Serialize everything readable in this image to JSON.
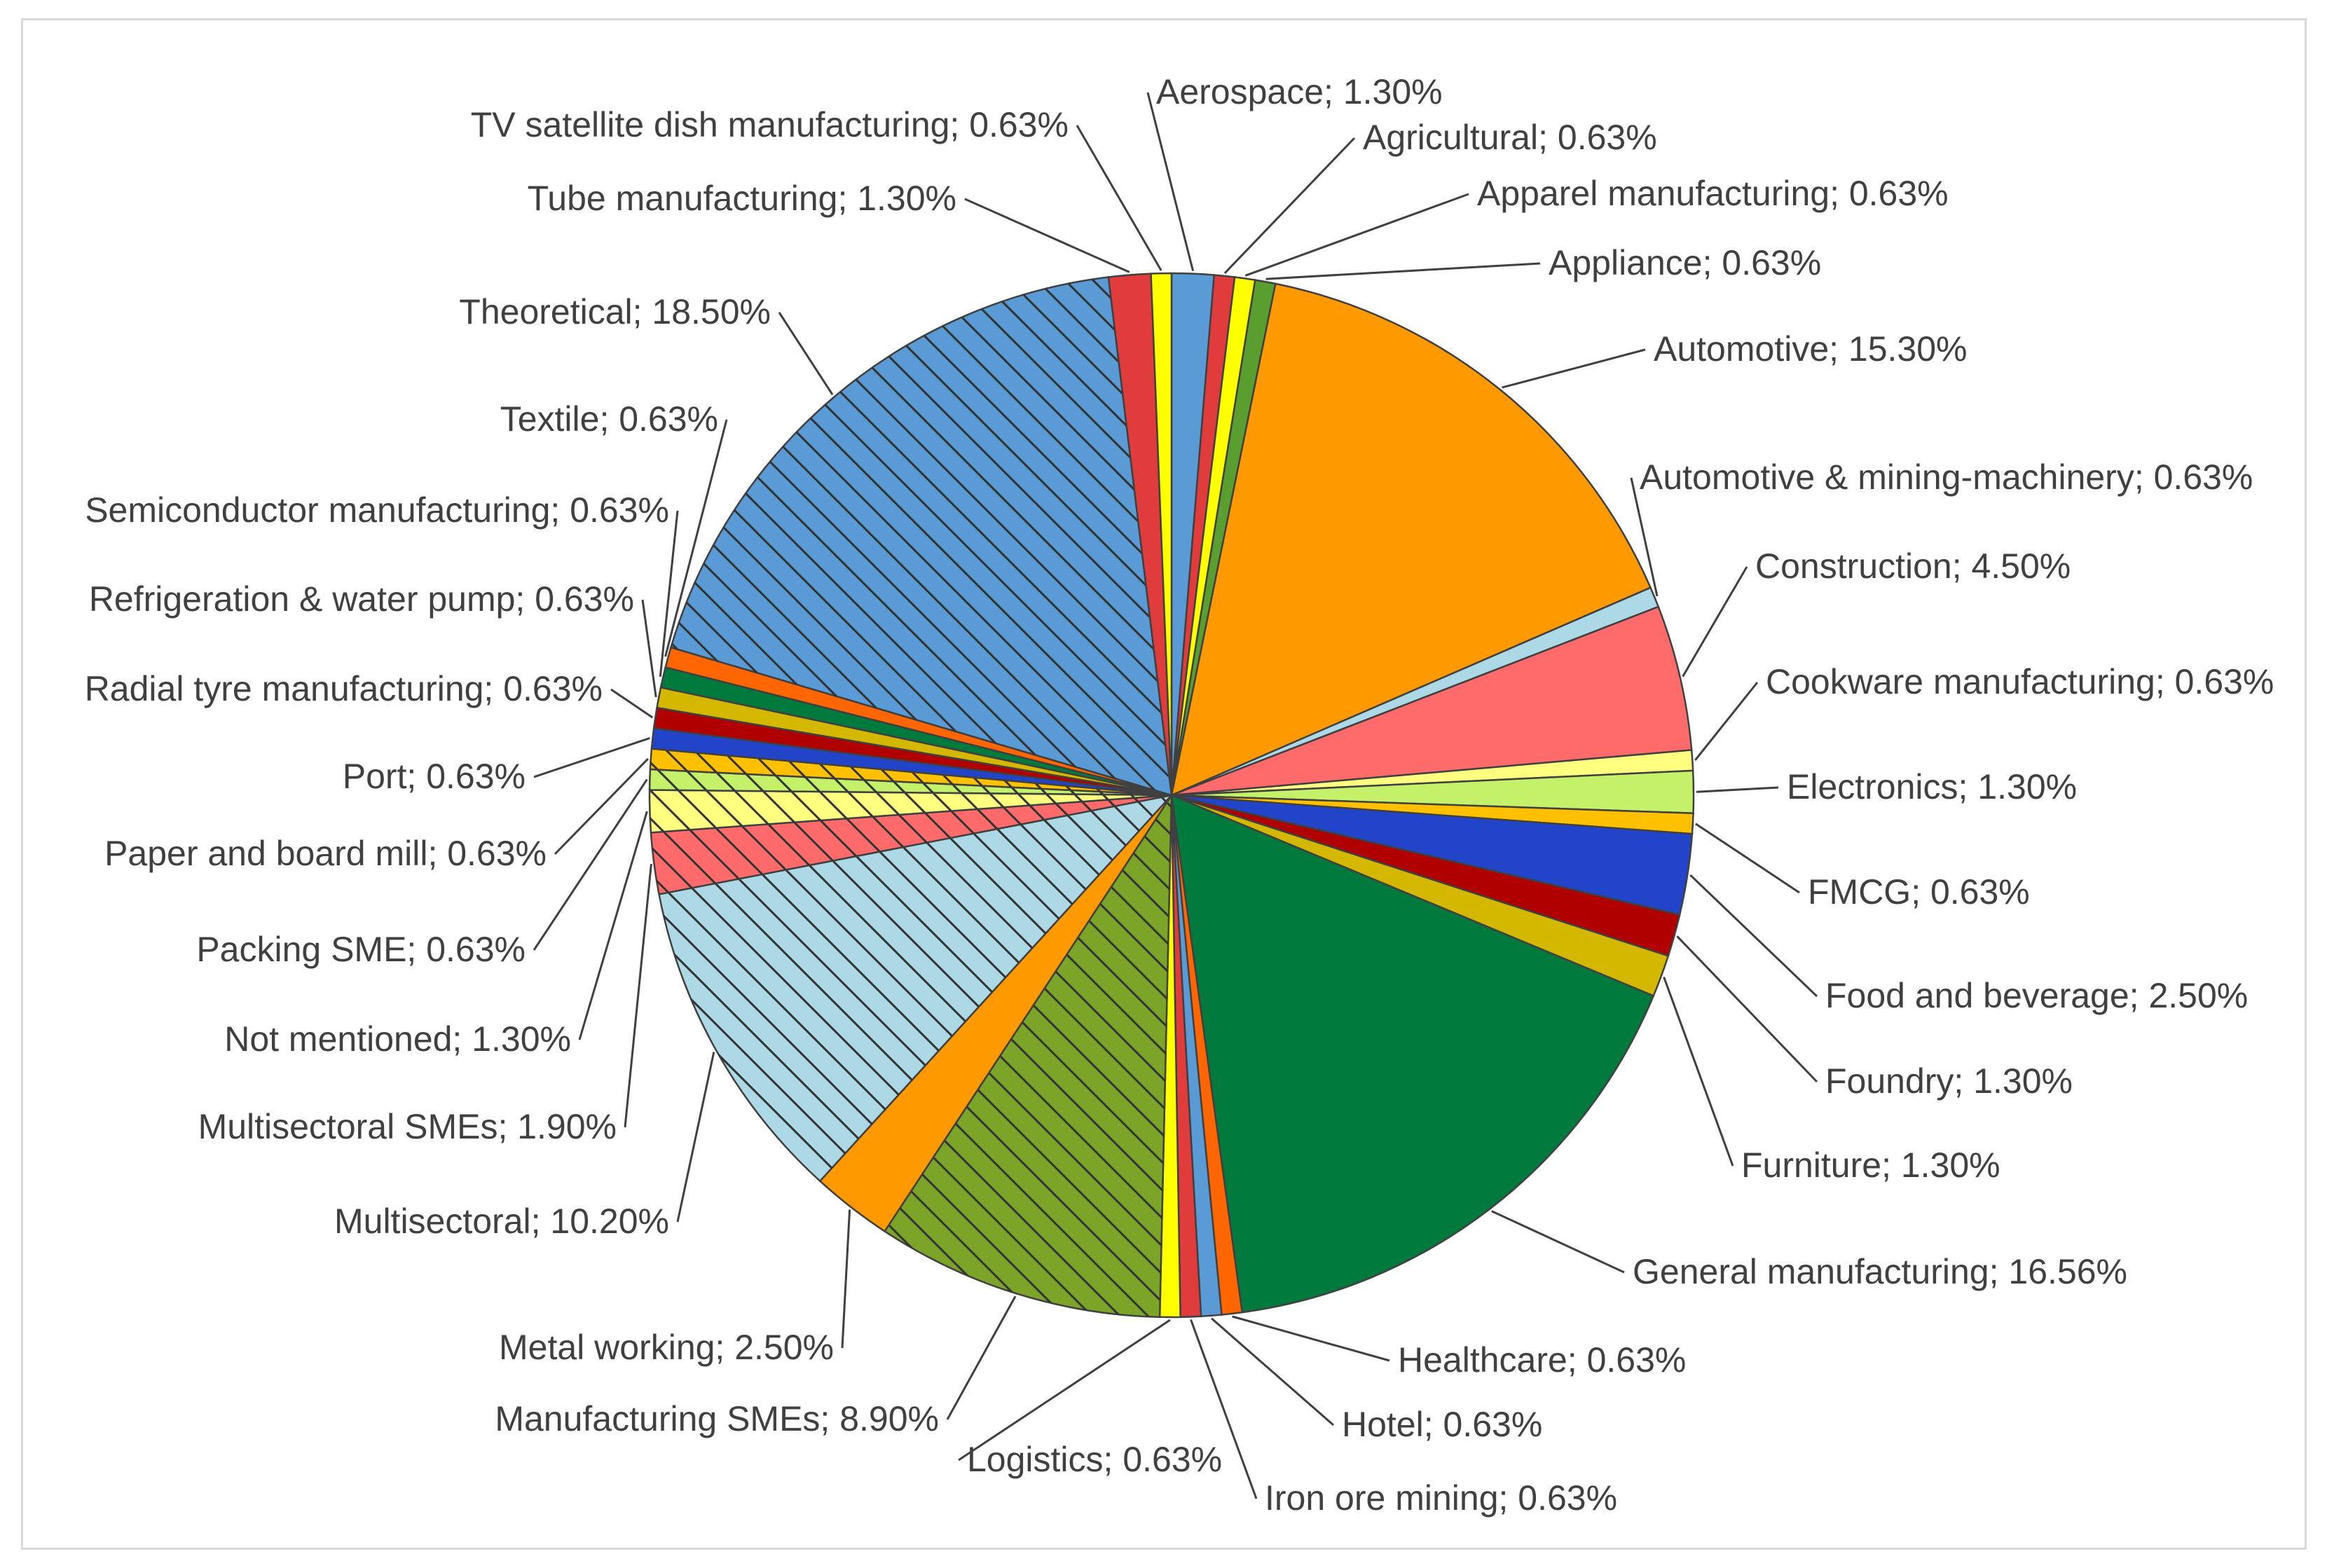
{
  "chart_data": {
    "type": "pie",
    "title": "",
    "series": [
      {
        "label": "Aerospace",
        "value": 1.3,
        "text": "Aerospace; 1.30%",
        "color": "#5b9bd5",
        "hatch": false
      },
      {
        "label": "Agricultural",
        "value": 0.63,
        "text": "Agricultural; 0.63%",
        "color": "#e03c3c",
        "hatch": false
      },
      {
        "label": "Apparel manufacturing",
        "value": 0.63,
        "text": "Apparel manufacturing; 0.63%",
        "color": "#ffff00",
        "hatch": false
      },
      {
        "label": "Appliance",
        "value": 0.63,
        "text": "Appliance; 0.63%",
        "color": "#5a9e2f",
        "hatch": false
      },
      {
        "label": "Automotive",
        "value": 15.3,
        "text": "Automotive; 15.30%",
        "color": "#ff9900",
        "hatch": false
      },
      {
        "label": "Automotive & mining-machinery",
        "value": 0.63,
        "text": "Automotive & mining-machinery; 0.63%",
        "color": "#add8e6",
        "hatch": false
      },
      {
        "label": "Construction",
        "value": 4.5,
        "text": "Construction; 4.50%",
        "color": "#ff6b6b",
        "hatch": false
      },
      {
        "label": "Cookware manufacturing",
        "value": 0.63,
        "text": "Cookware manufacturing; 0.63%",
        "color": "#ffff80",
        "hatch": false
      },
      {
        "label": "Electronics",
        "value": 1.3,
        "text": "Electronics; 1.30%",
        "color": "#c4f06a",
        "hatch": false
      },
      {
        "label": "FMCG",
        "value": 0.63,
        "text": "FMCG; 0.63%",
        "color": "#ffc000",
        "hatch": false
      },
      {
        "label": "Food and beverage",
        "value": 2.5,
        "text": "Food and beverage; 2.50%",
        "color": "#2244c8",
        "hatch": false
      },
      {
        "label": "Foundry",
        "value": 1.3,
        "text": "Foundry; 1.30%",
        "color": "#b00000",
        "hatch": false
      },
      {
        "label": "Furniture",
        "value": 1.3,
        "text": "Furniture; 1.30%",
        "color": "#d4b800",
        "hatch": false
      },
      {
        "label": "General manufacturing",
        "value": 16.56,
        "text": "General manufacturing; 16.56%",
        "color": "#007a3d",
        "hatch": false
      },
      {
        "label": "Healthcare",
        "value": 0.63,
        "text": "Healthcare; 0.63%",
        "color": "#ff6600",
        "hatch": false
      },
      {
        "label": "Hotel",
        "value": 0.63,
        "text": "Hotel; 0.63%",
        "color": "#5b9bd5",
        "hatch": false
      },
      {
        "label": "Iron ore mining",
        "value": 0.63,
        "text": "Iron ore mining; 0.63%",
        "color": "#e03c3c",
        "hatch": false
      },
      {
        "label": "Logistics",
        "value": 0.63,
        "text": "Logistics; 0.63%",
        "color": "#ffff00",
        "hatch": false
      },
      {
        "label": "Manufacturing SMEs",
        "value": 8.9,
        "text": "Manufacturing SMEs; 8.90%",
        "color": "#7ba428",
        "hatch": true
      },
      {
        "label": "Metal working",
        "value": 2.5,
        "text": "Metal working; 2.50%",
        "color": "#ff9900",
        "hatch": false
      },
      {
        "label": "Multisectoral",
        "value": 10.2,
        "text": "Multisectoral; 10.20%",
        "color": "#add8e6",
        "hatch": true
      },
      {
        "label": "Multisectoral SMEs",
        "value": 1.9,
        "text": "Multisectoral SMEs; 1.90%",
        "color": "#ff6b6b",
        "hatch": true
      },
      {
        "label": "Not mentioned",
        "value": 1.3,
        "text": "Not mentioned; 1.30%",
        "color": "#ffff80",
        "hatch": true
      },
      {
        "label": "Packing SME",
        "value": 0.63,
        "text": "Packing SME; 0.63%",
        "color": "#c4f06a",
        "hatch": true
      },
      {
        "label": "Paper and board mill",
        "value": 0.63,
        "text": "Paper and board mill; 0.63%",
        "color": "#ffc000",
        "hatch": true
      },
      {
        "label": "Port",
        "value": 0.63,
        "text": "Port; 0.63%",
        "color": "#2244c8",
        "hatch": false
      },
      {
        "label": "Radial tyre manufacturing",
        "value": 0.63,
        "text": "Radial tyre manufacturing; 0.63%",
        "color": "#b00000",
        "hatch": false
      },
      {
        "label": "Refrigeration & water pump",
        "value": 0.63,
        "text": "Refrigeration & water pump; 0.63%",
        "color": "#d4b800",
        "hatch": false
      },
      {
        "label": "Semiconductor manufacturing",
        "value": 0.63,
        "text": "Semiconductor manufacturing; 0.63%",
        "color": "#007a3d",
        "hatch": false
      },
      {
        "label": "Textile",
        "value": 0.63,
        "text": "Textile; 0.63%",
        "color": "#ff6600",
        "hatch": false
      },
      {
        "label": "Theoretical",
        "value": 18.5,
        "text": "Theoretical; 18.50%",
        "color": "#5b9bd5",
        "hatch": true
      },
      {
        "label": "Tube manufacturing",
        "value": 1.3,
        "text": "Tube manufacturing; 1.30%",
        "color": "#e03c3c",
        "hatch": false
      },
      {
        "label": "TV satellite dish manufacturing",
        "value": 0.63,
        "text": "TV satellite dish manufacturing; 0.63%",
        "color": "#ffff00",
        "hatch": false
      }
    ]
  }
}
